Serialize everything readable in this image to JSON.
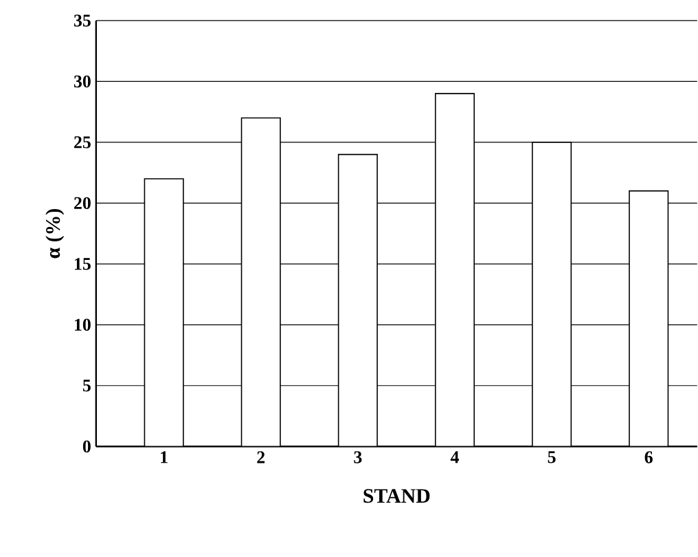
{
  "chart_data": {
    "type": "bar",
    "xlabel": "STAND",
    "ylabel": "α (%)",
    "categories": [
      "1",
      "2",
      "3",
      "4",
      "5",
      "6"
    ],
    "values": [
      22,
      27,
      24,
      29,
      25,
      21
    ],
    "color": "#ffffff",
    "ylim": [
      0,
      35
    ],
    "yticks": [
      0,
      5,
      10,
      15,
      20,
      25,
      30,
      35
    ],
    "grid": "y"
  }
}
